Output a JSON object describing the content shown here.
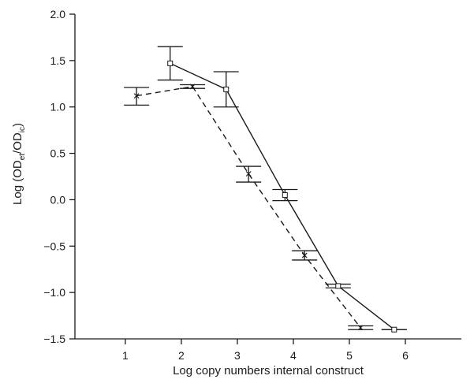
{
  "chart_data": {
    "type": "line",
    "title": "",
    "xlabel": "Log copy numbers internal construct",
    "ylabel": {
      "pre": "Log (OD",
      "sub1": "et",
      "mid": "/OD",
      "sub2": "ic",
      "post": ")"
    },
    "xlim": [
      0.1,
      7.0
    ],
    "ylim": [
      -1.5,
      2.0
    ],
    "x_ticks": [
      "1",
      "2",
      "3",
      "4",
      "5",
      "6"
    ],
    "x_tick_values": [
      1,
      2,
      3,
      4,
      5,
      6
    ],
    "y_ticks": [
      "2.0",
      "1.5",
      "1.0",
      "0.5",
      "0.0",
      "−0.5",
      "−1.0",
      "−1.5"
    ],
    "y_tick_values": [
      2.0,
      1.5,
      1.0,
      0.5,
      0.0,
      -0.5,
      -1.0,
      -1.5
    ],
    "grid": false,
    "series": [
      {
        "line_style": "solid",
        "marker": "square",
        "color": "#1a1a1a",
        "x": [
          1.8,
          2.8,
          3.85,
          4.8,
          5.8
        ],
        "y": [
          1.47,
          1.19,
          0.05,
          -0.93,
          -1.4
        ],
        "err_low": [
          1.29,
          1.0,
          -0.01,
          -0.95,
          -1.4
        ],
        "err_high": [
          1.65,
          1.38,
          0.11,
          -0.91,
          -1.4
        ]
      },
      {
        "line_style": "dashed",
        "marker": "x",
        "color": "#1a1a1a",
        "x": [
          1.2,
          2.2,
          3.2,
          4.2,
          5.2
        ],
        "y": [
          1.12,
          1.22,
          0.28,
          -0.6,
          -1.38
        ],
        "err_low": [
          1.02,
          1.2,
          0.19,
          -0.65,
          -1.4
        ],
        "err_high": [
          1.21,
          1.24,
          0.36,
          -0.55,
          -1.36
        ]
      }
    ]
  }
}
